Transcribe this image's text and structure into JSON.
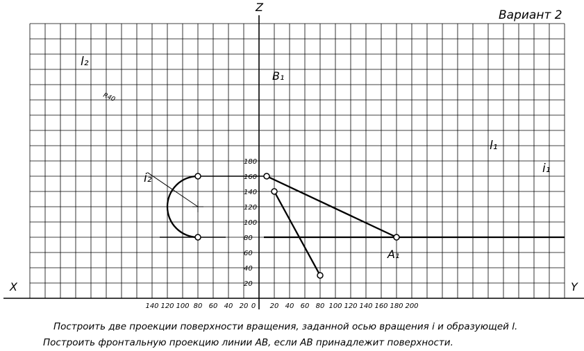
{
  "title": "Вариант 2",
  "axes": {
    "z_label": "Z",
    "x_label": "X",
    "y_label": "Y"
  },
  "z_ticks": [
    "20",
    "40",
    "60",
    "80",
    "100",
    "120",
    "140",
    "160",
    "180"
  ],
  "x_ticks_left": [
    "140",
    "120",
    "100",
    "80",
    "60",
    "40",
    "20"
  ],
  "zero_label": "0",
  "y_ticks_right": [
    "20",
    "40",
    "60",
    "80",
    "100",
    "120",
    "140",
    "160",
    "180",
    "200"
  ],
  "labels": {
    "l2": "l₂",
    "r40": "R40",
    "i2": "i₂",
    "B1": "B₁",
    "l1": "l₁",
    "i1": "i₁",
    "A1": "A₁"
  },
  "caption_line1": "Построить две проекции поверхности вращения, заданной осью вращения i и образующей l.",
  "caption_line2": "Построить фронтальную проекцию линии AB, если AB принадлежит поверхности.",
  "geometry": {
    "B1": [
      20,
      140
    ],
    "A1": [
      80,
      30
    ],
    "l1_start": [
      10,
      160
    ],
    "l1_end": [
      180,
      80
    ],
    "arc_center_x": 80,
    "arc_center_z": 120,
    "arc_radius": 40
  }
}
